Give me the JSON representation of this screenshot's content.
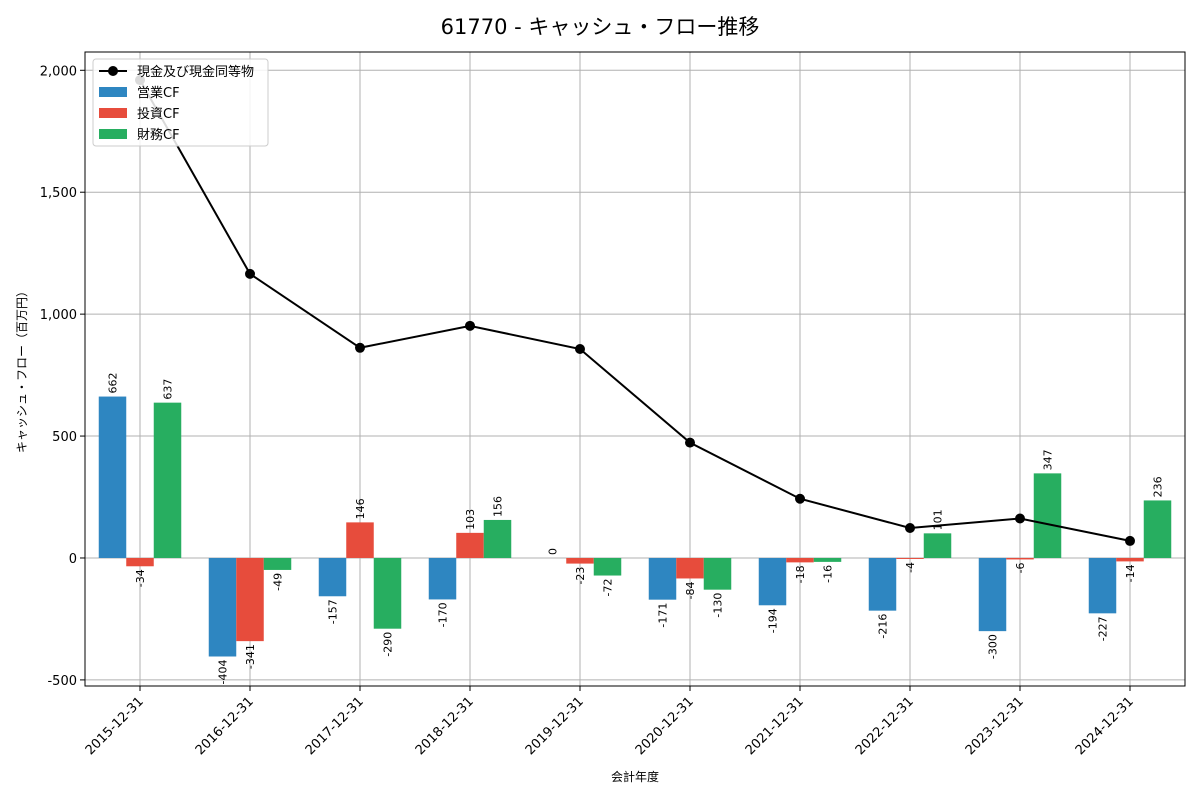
{
  "chart_data": {
    "type": "bar",
    "title": "61770 - キャッシュ・フロー推移",
    "xlabel": "会計年度",
    "ylabel": "キャッシュ・フロー（百万円）",
    "categories": [
      "2015-12-31",
      "2016-12-31",
      "2017-12-31",
      "2018-12-31",
      "2019-12-31",
      "2020-12-31",
      "2021-12-31",
      "2022-12-31",
      "2023-12-31",
      "2024-12-31"
    ],
    "ylim": [
      -525,
      2075
    ],
    "yticks": [
      -500,
      0,
      500,
      1000,
      1500,
      2000
    ],
    "ytick_labels": [
      "-500",
      "0",
      "500",
      "1,000",
      "1,500",
      "2,000"
    ],
    "grid": true,
    "legend_position": "top-left",
    "series": [
      {
        "name": "営業CF",
        "kind": "bar",
        "color": "#2e86c1",
        "values": [
          662,
          -404,
          -157,
          -170,
          0,
          -171,
          -194,
          -216,
          -300,
          -227
        ],
        "labels": [
          "662",
          "-404",
          "-157",
          "-170",
          "0",
          "-171",
          "-194",
          "-216",
          "-300",
          "-227"
        ]
      },
      {
        "name": "投資CF",
        "kind": "bar",
        "color": "#e74c3c",
        "values": [
          -34,
          -341,
          146,
          103,
          -23,
          -84,
          -18,
          -4,
          -6,
          -14
        ],
        "labels": [
          "-34",
          "-341",
          "146",
          "103",
          "-23",
          "-84",
          "-18",
          "-4",
          "-6",
          "-14"
        ]
      },
      {
        "name": "財務CF",
        "kind": "bar",
        "color": "#27ae60",
        "values": [
          637,
          -49,
          -290,
          156,
          -72,
          -130,
          -16,
          101,
          347,
          236
        ],
        "labels": [
          "637",
          "-49",
          "-290",
          "156",
          "-72",
          "-130",
          "-16",
          "101",
          "347",
          "236"
        ]
      },
      {
        "name": "現金及び現金同等物",
        "kind": "line",
        "color": "#000000",
        "values": [
          1960,
          1165,
          862,
          952,
          857,
          473,
          243,
          123,
          162,
          70
        ]
      }
    ]
  }
}
